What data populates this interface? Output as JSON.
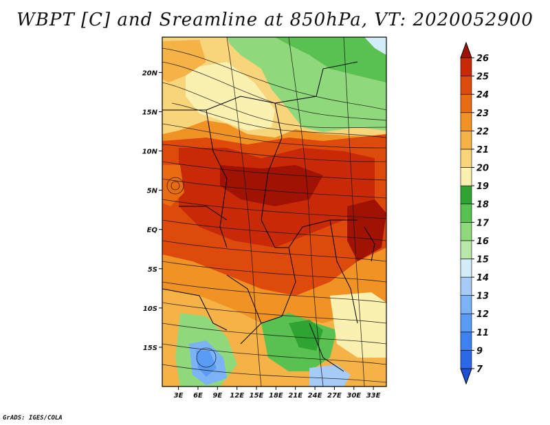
{
  "title": "WBPT [C] and Sreamline at 850hPa, VT: 2020052900",
  "credit": "GrADS: IGES/COLA",
  "map": {
    "lat_labels": [
      "20N",
      "15N",
      "10N",
      "5N",
      "EQ",
      "5S",
      "10S",
      "15S"
    ],
    "lat_values": [
      20,
      15,
      10,
      5,
      0,
      -5,
      -10,
      -15
    ],
    "lon_labels": [
      "3E",
      "6E",
      "9E",
      "12E",
      "15E",
      "18E",
      "21E",
      "24E",
      "27E",
      "30E",
      "33E"
    ],
    "lon_values": [
      3,
      6,
      9,
      12,
      15,
      18,
      21,
      24,
      27,
      30,
      33
    ],
    "lon_range": [
      0.5,
      35
    ],
    "lat_range": [
      -20,
      24.5
    ]
  },
  "colorbar": {
    "labels": [
      "7",
      "9",
      "11",
      "12",
      "13",
      "14",
      "15",
      "16",
      "17",
      "18",
      "19",
      "20",
      "21",
      "22",
      "23",
      "24",
      "25",
      "26"
    ],
    "colors": [
      "#1f4fd6",
      "#2a68e6",
      "#3d82f0",
      "#5a9bf4",
      "#7cb2f6",
      "#a6cbf6",
      "#d2ecf9",
      "#b7e8a8",
      "#8fd97c",
      "#58c14f",
      "#2fa433",
      "#faf0b0",
      "#f8d47a",
      "#f5b347",
      "#f09224",
      "#ea6c12",
      "#de4a0b",
      "#c82a08",
      "#a01204"
    ]
  }
}
